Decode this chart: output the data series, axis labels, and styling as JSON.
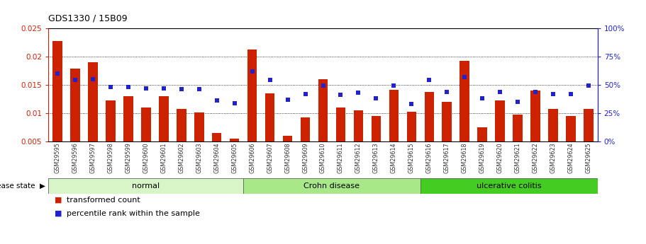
{
  "title": "GDS1330 / 15B09",
  "samples": [
    "GSM29595",
    "GSM29596",
    "GSM29597",
    "GSM29598",
    "GSM29599",
    "GSM29600",
    "GSM29601",
    "GSM29602",
    "GSM29603",
    "GSM29604",
    "GSM29605",
    "GSM29606",
    "GSM29607",
    "GSM29608",
    "GSM29609",
    "GSM29610",
    "GSM29611",
    "GSM29612",
    "GSM29613",
    "GSM29614",
    "GSM29615",
    "GSM29616",
    "GSM29617",
    "GSM29618",
    "GSM29619",
    "GSM29620",
    "GSM29621",
    "GSM29622",
    "GSM29623",
    "GSM29624",
    "GSM29625"
  ],
  "red_values": [
    0.0227,
    0.0178,
    0.019,
    0.0122,
    0.013,
    0.011,
    0.013,
    0.0108,
    0.0101,
    0.0065,
    0.0055,
    0.0212,
    0.0135,
    0.006,
    0.0093,
    0.016,
    0.011,
    0.0105,
    0.0095,
    0.0141,
    0.0103,
    0.0138,
    0.012,
    0.0192,
    0.0075,
    0.0122,
    0.0098,
    0.014,
    0.0108,
    0.0095,
    0.0108
  ],
  "blue_pct": [
    60,
    54,
    55,
    48,
    48,
    47,
    47,
    46,
    46,
    36,
    34,
    62,
    54,
    37,
    42,
    49,
    41,
    43,
    38,
    49,
    33,
    54,
    44,
    57,
    38,
    44,
    35,
    44,
    42,
    42,
    49
  ],
  "groups": [
    {
      "label": "normal",
      "start": 0,
      "end": 11,
      "color": "#d8f5c8"
    },
    {
      "label": "Crohn disease",
      "start": 11,
      "end": 21,
      "color": "#a8e888"
    },
    {
      "label": "ulcerative colitis",
      "start": 21,
      "end": 31,
      "color": "#44cc22"
    }
  ],
  "ylim_left": [
    0.005,
    0.025
  ],
  "ylim_right": [
    0,
    100
  ],
  "yticks_left": [
    0.005,
    0.01,
    0.015,
    0.02,
    0.025
  ],
  "yticks_right": [
    0,
    25,
    50,
    75,
    100
  ],
  "bar_color": "#cc2200",
  "dot_color": "#2222cc",
  "bar_width": 0.55,
  "label_transformed": "transformed count",
  "label_percentile": "percentile rank within the sample"
}
